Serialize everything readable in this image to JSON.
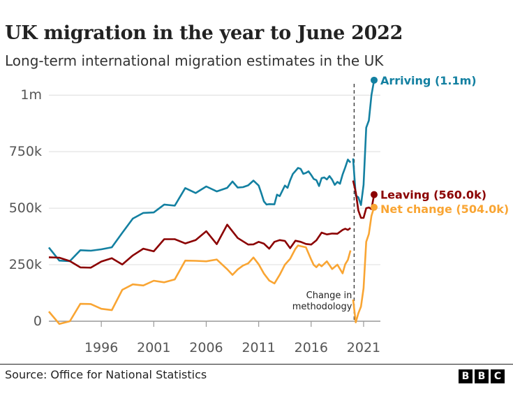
{
  "header": {
    "title": "UK migration in the year to June 2022",
    "subtitle": "Long-term international migration estimates in the UK"
  },
  "footer": {
    "source": "Source: Office for National Statistics",
    "logo_letters": [
      "B",
      "B",
      "C"
    ]
  },
  "chart_data": {
    "type": "line",
    "title": "UK migration in the year to June 2022",
    "subtitle": "Long-term international migration estimates in the UK",
    "xlabel": "",
    "ylabel": "",
    "xlim": [
      1991,
      2022.6
    ],
    "ylim": [
      0,
      1050000
    ],
    "grid": true,
    "legend": "end-of-line labels",
    "y_ticks": [
      {
        "value": 0,
        "label": "0"
      },
      {
        "value": 250000,
        "label": "250k"
      },
      {
        "value": 500000,
        "label": "500k"
      },
      {
        "value": 750000,
        "label": "750k"
      },
      {
        "value": 1000000,
        "label": "1m"
      }
    ],
    "x_ticks": [
      {
        "value": 1996,
        "label": "1996"
      },
      {
        "value": 2001,
        "label": "2001"
      },
      {
        "value": 2006,
        "label": "2006"
      },
      {
        "value": 2011,
        "label": "2011"
      },
      {
        "value": 2016,
        "label": "2016"
      },
      {
        "value": 2021,
        "label": "2021"
      }
    ],
    "annotation": {
      "x": 2020.1,
      "lines": [
        "Change in",
        "methodology"
      ]
    },
    "series": [
      {
        "name": "Arriving",
        "end_label": "Arriving (1.1m)",
        "color": "#1380A1",
        "segments": [
          [
            [
              1991,
              326000
            ],
            [
              1992,
              268000
            ],
            [
              1993,
              266000
            ],
            [
              1994,
              314000
            ],
            [
              1995,
              312000
            ],
            [
              1996,
              318000
            ],
            [
              1997,
              327000
            ],
            [
              1998,
              391000
            ],
            [
              1999,
              454000
            ],
            [
              2000,
              479000
            ],
            [
              2001,
              481000
            ],
            [
              2002,
              516000
            ],
            [
              2003,
              511000
            ],
            [
              2004,
              589000
            ],
            [
              2005,
              567000
            ],
            [
              2006,
              596000
            ],
            [
              2007,
              574000
            ],
            [
              2008,
              590000
            ],
            [
              2008.5,
              618000
            ],
            [
              2009,
              591000
            ],
            [
              2009.5,
              593000
            ],
            [
              2010,
              601000
            ],
            [
              2010.5,
              622000
            ],
            [
              2011,
              600000
            ],
            [
              2011.25,
              566000
            ],
            [
              2011.5,
              530000
            ],
            [
              2011.75,
              516000
            ],
            [
              2012,
              518000
            ],
            [
              2012.5,
              517000
            ],
            [
              2012.75,
              560000
            ],
            [
              2013,
              553000
            ],
            [
              2013.5,
              600000
            ],
            [
              2013.75,
              590000
            ],
            [
              2014,
              623000
            ],
            [
              2014.25,
              651000
            ],
            [
              2014.5,
              664000
            ],
            [
              2014.75,
              678000
            ],
            [
              2015,
              674000
            ],
            [
              2015.25,
              652000
            ],
            [
              2015.5,
              656000
            ],
            [
              2015.75,
              663000
            ],
            [
              2016,
              647000
            ],
            [
              2016.25,
              629000
            ],
            [
              2016.5,
              624000
            ],
            [
              2016.75,
              598000
            ],
            [
              2017,
              633000
            ],
            [
              2017.25,
              636000
            ],
            [
              2017.5,
              627000
            ],
            [
              2017.75,
              642000
            ],
            [
              2018,
              626000
            ],
            [
              2018.25,
              603000
            ],
            [
              2018.5,
              616000
            ],
            [
              2018.75,
              608000
            ],
            [
              2019,
              649000
            ],
            [
              2019.25,
              680000
            ],
            [
              2019.5,
              715000
            ],
            [
              2019.75,
              702000
            ]
          ],
          [
            [
              2020,
              720000
            ],
            [
              2020.25,
              556000
            ],
            [
              2020.5,
              548000
            ],
            [
              2020.75,
              514000
            ],
            [
              2021,
              603000
            ],
            [
              2021.25,
              856000
            ],
            [
              2021.5,
              888000
            ],
            [
              2021.75,
              1000000
            ],
            [
              2022,
              1066000
            ]
          ]
        ]
      },
      {
        "name": "Leaving",
        "end_label": "Leaving (560.0k)",
        "color": "#8B0000",
        "segments": [
          [
            [
              1991,
              283000
            ],
            [
              1992,
              281000
            ],
            [
              1993,
              266000
            ],
            [
              1994,
              238000
            ],
            [
              1995,
              237000
            ],
            [
              1996,
              264000
            ],
            [
              1997,
              279000
            ],
            [
              1998,
              251000
            ],
            [
              1999,
              291000
            ],
            [
              2000,
              321000
            ],
            [
              2001,
              309000
            ],
            [
              2002,
              363000
            ],
            [
              2003,
              363000
            ],
            [
              2004,
              344000
            ],
            [
              2005,
              359000
            ],
            [
              2006,
              398000
            ],
            [
              2007,
              341000
            ],
            [
              2008,
              427000
            ],
            [
              2009,
              368000
            ],
            [
              2010,
              339000
            ],
            [
              2010.5,
              340000
            ],
            [
              2011,
              351000
            ],
            [
              2011.5,
              343000
            ],
            [
              2012,
              321000
            ],
            [
              2012.5,
              351000
            ],
            [
              2013,
              359000
            ],
            [
              2013.5,
              355000
            ],
            [
              2014,
              323000
            ],
            [
              2014.5,
              356000
            ],
            [
              2015,
              351000
            ],
            [
              2015.5,
              342000
            ],
            [
              2016,
              339000
            ],
            [
              2016.5,
              358000
            ],
            [
              2017,
              392000
            ],
            [
              2017.5,
              384000
            ],
            [
              2018,
              388000
            ],
            [
              2018.5,
              387000
            ],
            [
              2019,
              404000
            ],
            [
              2019.25,
              409000
            ],
            [
              2019.5,
              404000
            ],
            [
              2019.75,
              412000
            ]
          ],
          [
            [
              2020,
              622000
            ],
            [
              2020.25,
              571000
            ],
            [
              2020.5,
              490000
            ],
            [
              2020.75,
              457000
            ],
            [
              2021,
              457000
            ],
            [
              2021.25,
              500000
            ],
            [
              2021.5,
              503000
            ],
            [
              2021.75,
              496000
            ],
            [
              2022,
              560000
            ]
          ]
        ]
      },
      {
        "name": "Net change",
        "end_label": "Net change (504.0k)",
        "color": "#F9A533",
        "segments": [
          [
            [
              1991,
              43000
            ],
            [
              1992,
              -12000
            ],
            [
              1993,
              0
            ],
            [
              1994,
              77000
            ],
            [
              1995,
              76000
            ],
            [
              1996,
              55000
            ],
            [
              1997,
              49000
            ],
            [
              1998,
              139000
            ],
            [
              1999,
              163000
            ],
            [
              2000,
              158000
            ],
            [
              2001,
              179000
            ],
            [
              2002,
              172000
            ],
            [
              2003,
              185000
            ],
            [
              2004,
              268000
            ],
            [
              2005,
              267000
            ],
            [
              2006,
              265000
            ],
            [
              2007,
              273000
            ],
            [
              2008,
              230000
            ],
            [
              2008.5,
              205000
            ],
            [
              2009,
              229000
            ],
            [
              2009.5,
              246000
            ],
            [
              2010,
              256000
            ],
            [
              2010.5,
              282000
            ],
            [
              2011,
              252000
            ],
            [
              2011.5,
              211000
            ],
            [
              2012,
              180000
            ],
            [
              2012.5,
              167000
            ],
            [
              2013,
              205000
            ],
            [
              2013.5,
              250000
            ],
            [
              2014,
              276000
            ],
            [
              2014.5,
              320000
            ],
            [
              2014.75,
              335000
            ],
            [
              2015,
              332000
            ],
            [
              2015.5,
              327000
            ],
            [
              2016,
              273000
            ],
            [
              2016.25,
              249000
            ],
            [
              2016.5,
              239000
            ],
            [
              2016.75,
              252000
            ],
            [
              2017,
              243000
            ],
            [
              2017.5,
              265000
            ],
            [
              2018,
              231000
            ],
            [
              2018.5,
              250000
            ],
            [
              2019,
              212000
            ],
            [
              2019.25,
              252000
            ],
            [
              2019.5,
              271000
            ],
            [
              2019.75,
              313000
            ]
          ],
          [
            [
              2020,
              96000
            ],
            [
              2020.25,
              -5000
            ],
            [
              2020.5,
              35000
            ],
            [
              2020.75,
              65000
            ],
            [
              2021,
              146000
            ],
            [
              2021.25,
              351000
            ],
            [
              2021.5,
              386000
            ],
            [
              2021.75,
              466000
            ],
            [
              2022,
              504000
            ]
          ]
        ]
      }
    ]
  }
}
